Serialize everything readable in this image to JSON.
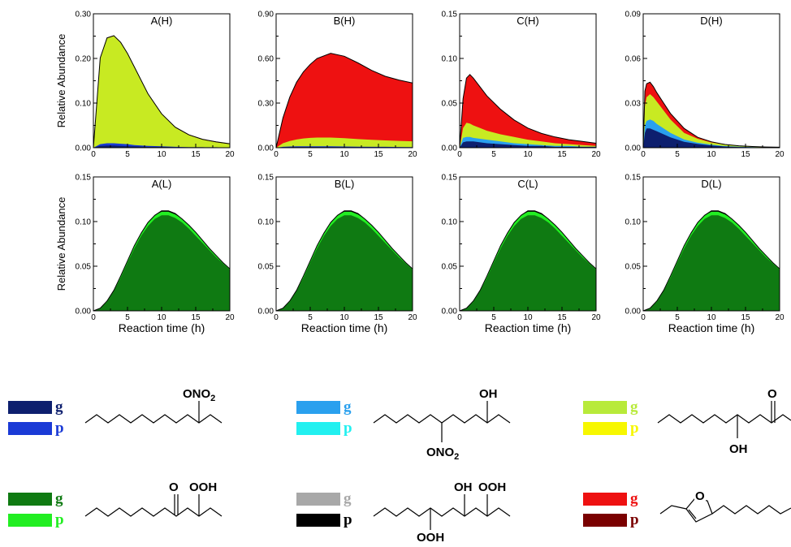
{
  "chart_data": [
    {
      "id": "A(H)",
      "type": "area",
      "title": "A(H)",
      "ylabel": "Relative Abundance",
      "xlabel": "",
      "xlim": [
        0,
        20
      ],
      "ylim": [
        0,
        0.3
      ],
      "yticks": [
        "0.00",
        "0.10",
        "0.20",
        "0.30"
      ],
      "xticks": [
        "0",
        "5",
        "10",
        "15",
        "20"
      ],
      "x": [
        0,
        1,
        2,
        3,
        4,
        5,
        6,
        8,
        10,
        12,
        14,
        16,
        18,
        20
      ],
      "series": [
        {
          "color": "#0d1f6e",
          "values": [
            0,
            0.004,
            0.005,
            0.005,
            0.004,
            0.003,
            0.003,
            0.002,
            0.002,
            0.001,
            0.001,
            0.001,
            0,
            0
          ]
        },
        {
          "color": "#1a3ad6",
          "values": [
            0,
            0.008,
            0.01,
            0.01,
            0.009,
            0.008,
            0.006,
            0.004,
            0.003,
            0.002,
            0.001,
            0.001,
            0.001,
            0
          ]
        },
        {
          "color": "#c8ea22",
          "values": [
            0,
            0.2,
            0.245,
            0.25,
            0.235,
            0.21,
            0.18,
            0.12,
            0.075,
            0.045,
            0.028,
            0.018,
            0.012,
            0.008
          ]
        },
        {
          "color": "#8a0000",
          "values": [
            0,
            0.201,
            0.246,
            0.251,
            0.236,
            0.211,
            0.181,
            0.121,
            0.076,
            0.046,
            0.029,
            0.019,
            0.013,
            0.009
          ]
        }
      ]
    },
    {
      "id": "B(H)",
      "type": "area",
      "title": "B(H)",
      "ylabel": "",
      "xlabel": "",
      "xlim": [
        0,
        20
      ],
      "ylim": [
        0,
        0.9
      ],
      "yticks": [
        "0.00",
        "0.30",
        "0.60",
        "0.90"
      ],
      "xticks": [
        "0",
        "5",
        "10",
        "15",
        "20"
      ],
      "x": [
        0,
        1,
        2,
        3,
        4,
        5,
        6,
        8,
        10,
        12,
        14,
        16,
        18,
        20
      ],
      "series": [
        {
          "color": "#0d1f6e",
          "values": [
            0,
            0.003,
            0.004,
            0.005,
            0.005,
            0.005,
            0.005,
            0.004,
            0.004,
            0.003,
            0.003,
            0.003,
            0.002,
            0.002
          ]
        },
        {
          "color": "#1a3ad6",
          "values": [
            0,
            0.006,
            0.008,
            0.009,
            0.01,
            0.01,
            0.01,
            0.009,
            0.008,
            0.007,
            0.006,
            0.006,
            0.005,
            0.004
          ]
        },
        {
          "color": "#c8ea22",
          "values": [
            0,
            0.03,
            0.045,
            0.055,
            0.062,
            0.066,
            0.068,
            0.068,
            0.064,
            0.058,
            0.053,
            0.049,
            0.046,
            0.043
          ]
        },
        {
          "color": "#ee1111",
          "values": [
            0,
            0.2,
            0.34,
            0.44,
            0.51,
            0.56,
            0.6,
            0.635,
            0.615,
            0.57,
            0.52,
            0.48,
            0.455,
            0.435
          ]
        }
      ]
    },
    {
      "id": "C(H)",
      "type": "area",
      "title": "C(H)",
      "ylabel": "",
      "xlabel": "",
      "xlim": [
        0,
        20
      ],
      "ylim": [
        0,
        0.15
      ],
      "yticks": [
        "0.00",
        "0.05",
        "0.10",
        "0.15"
      ],
      "xticks": [
        "0",
        "5",
        "10",
        "15",
        "20"
      ],
      "x": [
        0,
        0.5,
        1,
        1.5,
        2,
        3,
        4,
        6,
        8,
        10,
        12,
        14,
        16,
        18,
        20
      ],
      "series": [
        {
          "color": "#0d1f6e",
          "values": [
            0,
            0.006,
            0.007,
            0.007,
            0.007,
            0.006,
            0.005,
            0.004,
            0.003,
            0.002,
            0.002,
            0.001,
            0.001,
            0.001,
            0.001
          ]
        },
        {
          "color": "#2aa0ee",
          "values": [
            0,
            0.011,
            0.012,
            0.012,
            0.011,
            0.01,
            0.009,
            0.007,
            0.005,
            0.004,
            0.003,
            0.002,
            0.002,
            0.001,
            0.001
          ]
        },
        {
          "color": "#c8ea22",
          "values": [
            0,
            0.022,
            0.028,
            0.027,
            0.025,
            0.022,
            0.019,
            0.015,
            0.012,
            0.009,
            0.007,
            0.005,
            0.004,
            0.003,
            0.002
          ]
        },
        {
          "color": "#ee1111",
          "values": [
            0,
            0.055,
            0.078,
            0.082,
            0.078,
            0.068,
            0.058,
            0.043,
            0.031,
            0.022,
            0.016,
            0.012,
            0.009,
            0.007,
            0.005
          ]
        }
      ]
    },
    {
      "id": "D(H)",
      "type": "area",
      "title": "D(H)",
      "ylabel": "",
      "xlabel": "",
      "xlim": [
        0,
        20
      ],
      "ylim": [
        0,
        0.09
      ],
      "yticks": [
        "0.00",
        "0.03",
        "0.06",
        "0.09"
      ],
      "xticks": [
        "0",
        "5",
        "10",
        "15",
        "20"
      ],
      "x": [
        0,
        0.25,
        0.5,
        1,
        1.5,
        2,
        3,
        4,
        6,
        8,
        10,
        12,
        14,
        16,
        18,
        20
      ],
      "series": [
        {
          "color": "#0d1f6e",
          "values": [
            0,
            0.01,
            0.013,
            0.013,
            0.012,
            0.011,
            0.009,
            0.007,
            0.004,
            0.0025,
            0.0015,
            0.0008,
            0.0005,
            0.0003,
            0.0002,
            0.0001
          ]
        },
        {
          "color": "#2aa0ee",
          "values": [
            0,
            0.015,
            0.018,
            0.019,
            0.018,
            0.016,
            0.013,
            0.01,
            0.0055,
            0.0033,
            0.002,
            0.0011,
            0.0007,
            0.0004,
            0.0002,
            0.0001
          ]
        },
        {
          "color": "#c8ea22",
          "values": [
            0,
            0.028,
            0.034,
            0.036,
            0.034,
            0.031,
            0.025,
            0.019,
            0.01,
            0.006,
            0.0035,
            0.002,
            0.0012,
            0.0007,
            0.0004,
            0.0002
          ]
        },
        {
          "color": "#ee1111",
          "values": [
            0,
            0.038,
            0.043,
            0.044,
            0.041,
            0.037,
            0.03,
            0.023,
            0.013,
            0.007,
            0.004,
            0.0022,
            0.0013,
            0.0008,
            0.0005,
            0.0003
          ]
        }
      ]
    },
    {
      "id": "A(L)",
      "type": "area",
      "title": "A(L)",
      "ylabel": "Relative Abundance",
      "xlabel": "Reaction time (h)",
      "xlim": [
        0,
        20
      ],
      "ylim": [
        0,
        0.15
      ],
      "yticks": [
        "0.00",
        "0.05",
        "0.10",
        "0.15"
      ],
      "xticks": [
        "0",
        "5",
        "10",
        "15",
        "20"
      ],
      "x": [
        0,
        1,
        2,
        3,
        4,
        5,
        6,
        7,
        8,
        9,
        10,
        11,
        12,
        13,
        14,
        15,
        16,
        17,
        18,
        19,
        20
      ],
      "series": [
        {
          "color": "#0f7a12",
          "values": [
            0,
            0.003,
            0.01,
            0.022,
            0.037,
            0.054,
            0.07,
            0.084,
            0.095,
            0.103,
            0.107,
            0.107,
            0.104,
            0.099,
            0.092,
            0.084,
            0.076,
            0.068,
            0.06,
            0.053,
            0.046
          ]
        },
        {
          "color": "#22ee22",
          "values": [
            0,
            0.003,
            0.011,
            0.023,
            0.039,
            0.056,
            0.073,
            0.087,
            0.099,
            0.107,
            0.111,
            0.111,
            0.108,
            0.103,
            0.096,
            0.088,
            0.079,
            0.07,
            0.062,
            0.054,
            0.047
          ]
        },
        {
          "color": "#000000",
          "values": [
            0,
            0.003,
            0.011,
            0.023,
            0.039,
            0.056,
            0.073,
            0.087,
            0.099,
            0.107,
            0.112,
            0.112,
            0.109,
            0.103,
            0.096,
            0.088,
            0.079,
            0.07,
            0.062,
            0.054,
            0.047
          ]
        }
      ]
    },
    {
      "id": "B(L)",
      "type": "area",
      "title": "B(L)",
      "ylabel": "",
      "xlabel": "Reaction time (h)",
      "xlim": [
        0,
        20
      ],
      "ylim": [
        0,
        0.15
      ],
      "yticks": [
        "0.00",
        "0.05",
        "0.10",
        "0.15"
      ],
      "xticks": [
        "0",
        "5",
        "10",
        "15",
        "20"
      ],
      "x": [
        0,
        1,
        2,
        3,
        4,
        5,
        6,
        7,
        8,
        9,
        10,
        11,
        12,
        13,
        14,
        15,
        16,
        17,
        18,
        19,
        20
      ],
      "series": [
        {
          "color": "#0f7a12",
          "values": [
            0,
            0.003,
            0.01,
            0.022,
            0.037,
            0.054,
            0.07,
            0.084,
            0.095,
            0.103,
            0.107,
            0.107,
            0.104,
            0.099,
            0.092,
            0.084,
            0.076,
            0.068,
            0.06,
            0.053,
            0.046
          ]
        },
        {
          "color": "#22ee22",
          "values": [
            0,
            0.003,
            0.011,
            0.023,
            0.039,
            0.056,
            0.073,
            0.087,
            0.099,
            0.107,
            0.111,
            0.111,
            0.108,
            0.103,
            0.096,
            0.088,
            0.079,
            0.07,
            0.062,
            0.054,
            0.047
          ]
        },
        {
          "color": "#000000",
          "values": [
            0,
            0.003,
            0.011,
            0.023,
            0.039,
            0.056,
            0.073,
            0.087,
            0.099,
            0.107,
            0.112,
            0.112,
            0.109,
            0.103,
            0.096,
            0.088,
            0.079,
            0.07,
            0.062,
            0.054,
            0.047
          ]
        }
      ]
    },
    {
      "id": "C(L)",
      "type": "area",
      "title": "C(L)",
      "ylabel": "",
      "xlabel": "Reaction time (h)",
      "xlim": [
        0,
        20
      ],
      "ylim": [
        0,
        0.15
      ],
      "yticks": [
        "0.00",
        "0.05",
        "0.10",
        "0.15"
      ],
      "xticks": [
        "0",
        "5",
        "10",
        "15",
        "20"
      ],
      "x": [
        0,
        1,
        2,
        3,
        4,
        5,
        6,
        7,
        8,
        9,
        10,
        11,
        12,
        13,
        14,
        15,
        16,
        17,
        18,
        19,
        20
      ],
      "series": [
        {
          "color": "#0f7a12",
          "values": [
            0,
            0.003,
            0.01,
            0.022,
            0.037,
            0.054,
            0.07,
            0.084,
            0.095,
            0.103,
            0.107,
            0.107,
            0.104,
            0.099,
            0.092,
            0.084,
            0.076,
            0.068,
            0.06,
            0.053,
            0.046
          ]
        },
        {
          "color": "#22ee22",
          "values": [
            0,
            0.003,
            0.011,
            0.023,
            0.039,
            0.056,
            0.073,
            0.087,
            0.099,
            0.107,
            0.111,
            0.111,
            0.108,
            0.103,
            0.096,
            0.088,
            0.079,
            0.07,
            0.062,
            0.054,
            0.047
          ]
        },
        {
          "color": "#000000",
          "values": [
            0,
            0.003,
            0.011,
            0.023,
            0.039,
            0.056,
            0.073,
            0.087,
            0.099,
            0.107,
            0.112,
            0.112,
            0.109,
            0.103,
            0.096,
            0.088,
            0.079,
            0.07,
            0.062,
            0.054,
            0.047
          ]
        }
      ]
    },
    {
      "id": "D(L)",
      "type": "area",
      "title": "D(L)",
      "ylabel": "",
      "xlabel": "Reaction time (h)",
      "xlim": [
        0,
        20
      ],
      "ylim": [
        0,
        0.15
      ],
      "yticks": [
        "0.00",
        "0.05",
        "0.10",
        "0.15"
      ],
      "xticks": [
        "0",
        "5",
        "10",
        "15",
        "20"
      ],
      "x": [
        0,
        1,
        2,
        3,
        4,
        5,
        6,
        7,
        8,
        9,
        10,
        11,
        12,
        13,
        14,
        15,
        16,
        17,
        18,
        19,
        20
      ],
      "series": [
        {
          "color": "#0f7a12",
          "values": [
            0,
            0.003,
            0.01,
            0.022,
            0.037,
            0.054,
            0.07,
            0.084,
            0.095,
            0.103,
            0.107,
            0.107,
            0.104,
            0.099,
            0.092,
            0.084,
            0.076,
            0.068,
            0.06,
            0.053,
            0.046
          ]
        },
        {
          "color": "#22ee22",
          "values": [
            0,
            0.003,
            0.011,
            0.023,
            0.039,
            0.056,
            0.073,
            0.087,
            0.099,
            0.107,
            0.111,
            0.111,
            0.108,
            0.103,
            0.096,
            0.088,
            0.079,
            0.07,
            0.062,
            0.054,
            0.047
          ]
        },
        {
          "color": "#000000",
          "values": [
            0,
            0.003,
            0.011,
            0.023,
            0.039,
            0.056,
            0.073,
            0.087,
            0.099,
            0.107,
            0.112,
            0.112,
            0.109,
            0.103,
            0.096,
            0.088,
            0.079,
            0.07,
            0.062,
            0.054,
            0.047
          ]
        }
      ]
    }
  ],
  "legend": [
    {
      "g": {
        "label": "g",
        "color": "#0d1f6e"
      },
      "p": {
        "label": "p",
        "color": "#1a3ad6"
      },
      "labels": [
        "ONO",
        "2"
      ]
    },
    {
      "g": {
        "label": "g",
        "color": "#2aa0ee"
      },
      "p": {
        "label": "p",
        "color": "#22f0f0"
      },
      "labels": [
        "OH",
        "ONO",
        "2"
      ]
    },
    {
      "g": {
        "label": "g",
        "color": "#b8ea3a"
      },
      "p": {
        "label": "p",
        "color": "#f7f700"
      },
      "labels": [
        "O",
        "OH"
      ]
    },
    {
      "g": {
        "label": "g",
        "color": "#0f7a12"
      },
      "p": {
        "label": "p",
        "color": "#22ee22"
      },
      "labels": [
        "O",
        "OOH"
      ]
    },
    {
      "g": {
        "label": "g",
        "color": "#a8a8a8"
      },
      "p": {
        "label": "p",
        "color": "#000000"
      },
      "labels": [
        "OH",
        "OOH",
        "OOH"
      ]
    },
    {
      "g": {
        "label": "g",
        "color": "#ee1111"
      },
      "p": {
        "label": "p",
        "color": "#7a0000"
      },
      "labels": [
        "O"
      ]
    }
  ]
}
